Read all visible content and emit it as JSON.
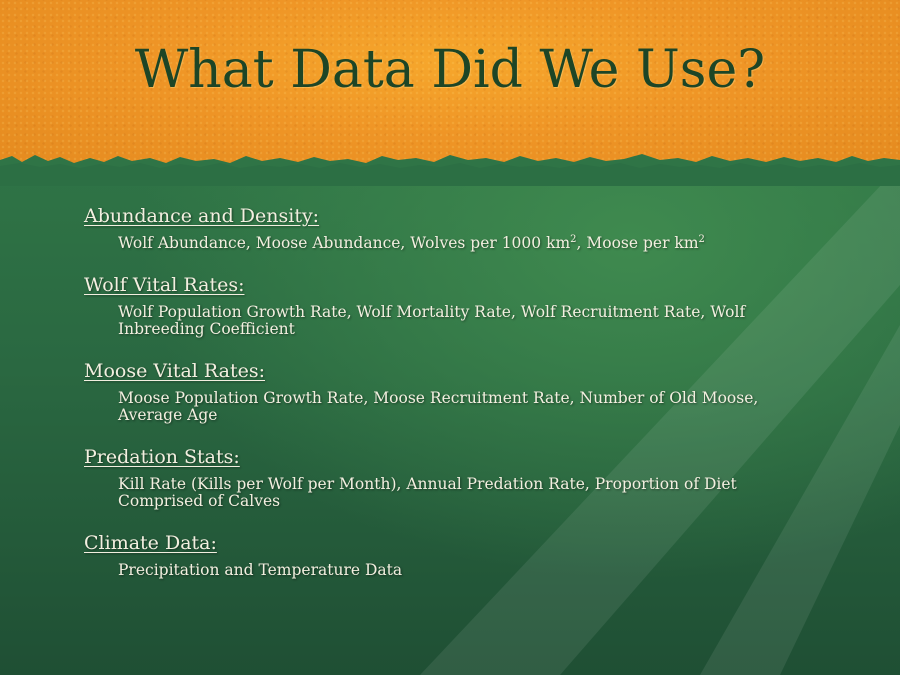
{
  "title": "What Data Did We Use?",
  "colors": {
    "top_band": "#ef9526",
    "bottom_band": "#2a6841",
    "title_text": "#1d4526",
    "body_text": "#f3efe0"
  },
  "sections": [
    {
      "heading": "Abundance and Density:",
      "body": {
        "part1": "Wolf Abundance, Moose Abundance, Wolves per 1000 km",
        "sup1": "2",
        "part2": ", Moose per km",
        "sup2": "2"
      }
    },
    {
      "heading": "Wolf Vital Rates:",
      "body": "Wolf Population Growth Rate, Wolf Mortality Rate, Wolf Recruitment Rate, Wolf Inbreeding Coefficient"
    },
    {
      "heading": "Moose Vital Rates:",
      "body": "Moose Population Growth Rate, Moose Recruitment Rate, Number of Old Moose, Average Age"
    },
    {
      "heading": "Predation Stats:",
      "body": "Kill Rate (Kills per Wolf per Month), Annual Predation Rate, Proportion of Diet Comprised of Calves"
    },
    {
      "heading": "Climate Data:",
      "body": "Precipitation and Temperature Data"
    }
  ]
}
